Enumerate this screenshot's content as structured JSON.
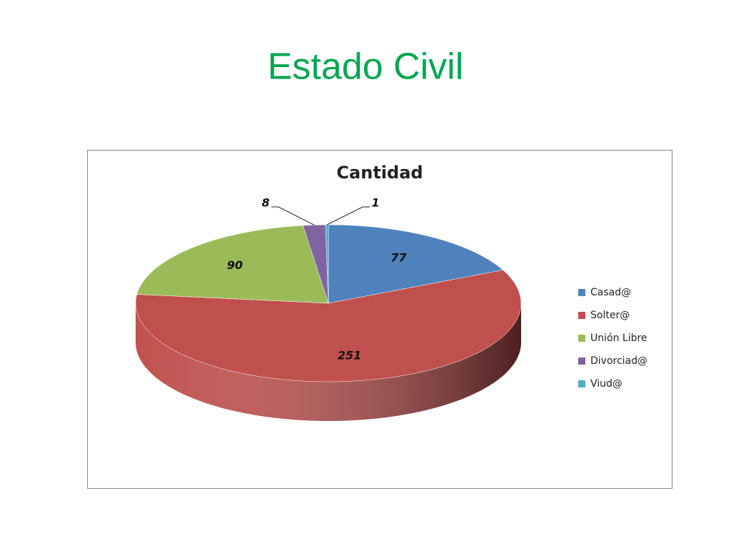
{
  "page_title": "Estado Civil",
  "chart_data": {
    "type": "pie",
    "title": "Cantidad",
    "categories": [
      "Casad@",
      "Solter@",
      "Unión Libre",
      "Divorciad@",
      "Viud@"
    ],
    "values": [
      77,
      251,
      90,
      8,
      1
    ],
    "colors": [
      "#4f81bd",
      "#c0504d",
      "#9bbb59",
      "#8064a2",
      "#4bacc6"
    ],
    "legend": "right"
  }
}
